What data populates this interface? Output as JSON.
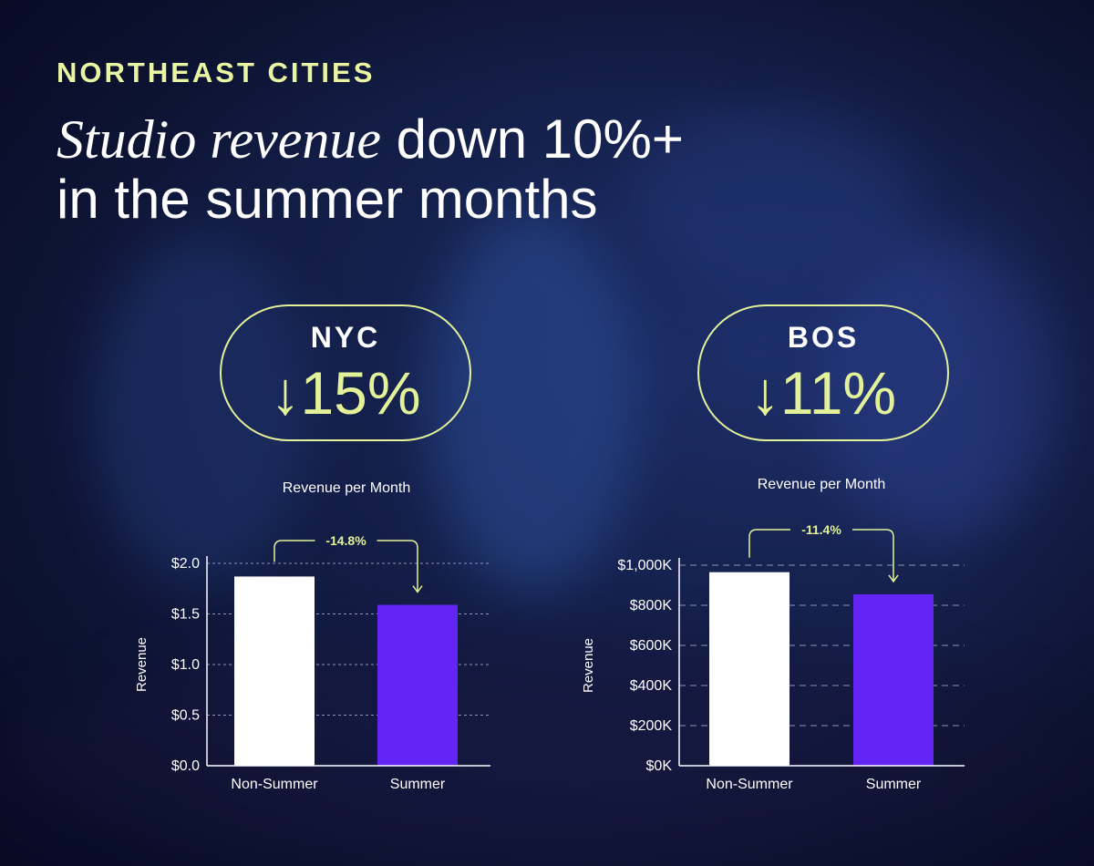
{
  "header": {
    "eyebrow": "NORTHEAST CITIES",
    "headline_italic": "Studio revenue",
    "headline_rest": " down 10%+",
    "headline_line2": "in the summer months"
  },
  "kpis": [
    {
      "city": "NYC",
      "change": "↓15%"
    },
    {
      "city": "BOS",
      "change": "↓11%"
    }
  ],
  "colors": {
    "accent": "#e3f199",
    "bar_non_summer": "#ffffff",
    "bar_summer": "#6324f5"
  },
  "chart_data": [
    {
      "type": "bar",
      "title": "Revenue per Month",
      "ylabel": "Revenue",
      "categories": [
        "Non-Summer",
        "Summer"
      ],
      "values": [
        1.87,
        1.59
      ],
      "ylim": [
        0,
        2.0
      ],
      "yticks": [
        0,
        0.5,
        1.0,
        1.5,
        2.0
      ],
      "ytick_labels": [
        "$0.0",
        "$0.5",
        "$1.0",
        "$1.5",
        "$2.0"
      ],
      "annotation": "-14.8%",
      "grid": true
    },
    {
      "type": "bar",
      "title": "Revenue per Month",
      "ylabel": "Revenue",
      "categories": [
        "Non-Summer",
        "Summer"
      ],
      "values": [
        965,
        855
      ],
      "ylim": [
        0,
        1000
      ],
      "yticks": [
        0,
        200,
        400,
        600,
        800,
        1000
      ],
      "ytick_labels": [
        "$0K",
        "$200K",
        "$400K",
        "$600K",
        "$800K",
        "$1,000K"
      ],
      "annotation": "-11.4%",
      "grid": true
    }
  ]
}
